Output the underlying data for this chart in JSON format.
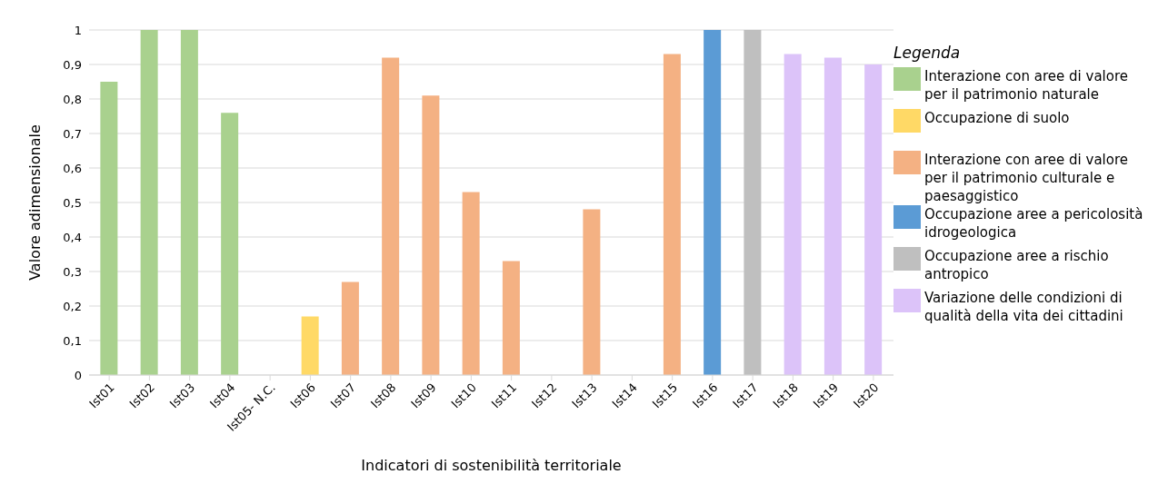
{
  "chart_data": {
    "type": "bar",
    "xlabel": "Indicatori di sostenibilità territoriale",
    "ylabel": "Valore adimensionale",
    "legend_title": "Legenda",
    "legend": "right",
    "grid": "y",
    "stacked": true,
    "categories": [
      "Ist01",
      "Ist02",
      "Ist03",
      "Ist04",
      "Ist05- N.C.",
      "Ist06",
      "Ist07",
      "Ist08",
      "Ist09",
      "Ist10",
      "Ist11",
      "Ist12",
      "Ist13",
      "Ist14",
      "Ist15",
      "Ist16",
      "Ist17",
      "Ist18",
      "Ist19",
      "Ist20"
    ],
    "ylim": [
      0,
      1.0
    ],
    "yticks": [
      0,
      {
        "value": 0.1,
        "label": "0,1"
      },
      {
        "value": 0.2,
        "label": "0,2"
      },
      {
        "value": 0.3,
        "label": "0,3"
      },
      {
        "value": 0.4,
        "label": "0,4"
      },
      {
        "value": 0.5,
        "label": "0,5"
      },
      {
        "value": 0.6,
        "label": "0,6"
      },
      {
        "value": 0.7,
        "label": "0,7"
      },
      {
        "value": 0.8,
        "label": "0,8"
      },
      {
        "value": 0.9,
        "label": "0,9"
      },
      1
    ],
    "series": [
      {
        "name": "Interazione con aree di valore per il patrimonio naturale",
        "color": "#a9d18e",
        "values": [
          0.85,
          1,
          1,
          0.76,
          null,
          null,
          null,
          null,
          null,
          null,
          null,
          null,
          null,
          null,
          null,
          null,
          null,
          null,
          null,
          null
        ]
      },
      {
        "name": "Occupazione di suolo",
        "color": "#ffd966",
        "values": [
          null,
          null,
          null,
          null,
          null,
          0.17,
          null,
          null,
          null,
          null,
          null,
          null,
          null,
          null,
          null,
          null,
          null,
          null,
          null,
          null
        ]
      },
      {
        "name": "Interazione con aree di valore per il patrimonio culturale e paesaggistico",
        "color": "#f4b183",
        "values": [
          null,
          null,
          null,
          null,
          null,
          null,
          0.27,
          0.92,
          0.81,
          0.53,
          0.33,
          0,
          0.48,
          0,
          0.93,
          null,
          null,
          null,
          null,
          null
        ]
      },
      {
        "name": "Occupazione aree a pericolosità idrogeologica",
        "color": "#5b9bd5",
        "values": [
          null,
          null,
          null,
          null,
          null,
          null,
          null,
          null,
          null,
          null,
          null,
          null,
          null,
          null,
          null,
          1,
          null,
          null,
          null,
          null
        ]
      },
      {
        "name": "Occupazione aree a rischio antropico",
        "color": "#bfbfbf",
        "values": [
          null,
          null,
          null,
          null,
          null,
          null,
          null,
          null,
          null,
          null,
          null,
          null,
          null,
          null,
          null,
          null,
          1,
          null,
          null,
          null
        ]
      },
      {
        "name": "Variazione delle condizioni di qualità della vita dei cittadini",
        "color": "#dcc3f9",
        "values": [
          null,
          null,
          null,
          null,
          null,
          null,
          null,
          null,
          null,
          null,
          null,
          null,
          null,
          null,
          null,
          null,
          null,
          0.93,
          0.92,
          0.9
        ]
      }
    ]
  }
}
